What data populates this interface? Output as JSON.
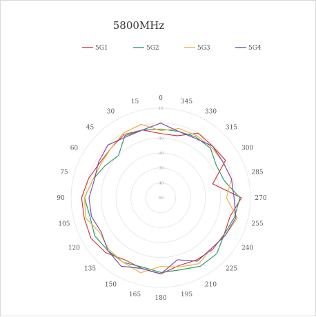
{
  "chart_data": {
    "type": "radar",
    "title": "5800MHz",
    "legend_position": "top",
    "angle_labels": [
      "0",
      "15",
      "30",
      "45",
      "60",
      "75",
      "90",
      "105",
      "120",
      "135",
      "150",
      "165",
      "180",
      "195",
      "210",
      "225",
      "240",
      "255",
      "270",
      "285",
      "300",
      "315",
      "330",
      "345"
    ],
    "radial_axis": {
      "min": -50,
      "max": 10,
      "ticks": [
        10,
        0,
        -10,
        -20,
        -30,
        -40,
        -50
      ]
    },
    "grid": true,
    "series": [
      {
        "name": "5G1",
        "color": "#d93a3a",
        "values": [
          -7,
          -3,
          -1,
          -3,
          -3,
          0,
          3,
          3,
          4,
          2,
          -2,
          -1,
          1,
          -3,
          -2,
          -1,
          -1,
          -2,
          4,
          -14,
          0,
          -1,
          0,
          -7
        ]
      },
      {
        "name": "5G2",
        "color": "#2e9c73",
        "values": [
          -4,
          -3,
          -2,
          -10,
          -7,
          -3,
          1,
          -1,
          1,
          0,
          0,
          -2,
          0,
          0,
          3,
          3,
          -1,
          1,
          3,
          -6,
          -7,
          -3,
          -3,
          -4
        ]
      },
      {
        "name": "5G3",
        "color": "#f0b43a",
        "values": [
          -5,
          1,
          0,
          -3,
          -4,
          -3,
          1,
          2,
          -3,
          -1,
          0,
          2,
          -4,
          -2,
          1,
          -2,
          0,
          3,
          -6,
          -1,
          -2,
          -2,
          -2,
          -2
        ]
      },
      {
        "name": "5G4",
        "color": "#7b4fb0",
        "values": [
          0,
          -3,
          -3,
          0,
          -2,
          -4,
          -2,
          -2,
          -4,
          0,
          3,
          -1,
          1,
          -7,
          -1,
          -2,
          0,
          2,
          -1,
          -1,
          -2,
          -1,
          -4,
          -4
        ]
      }
    ]
  }
}
